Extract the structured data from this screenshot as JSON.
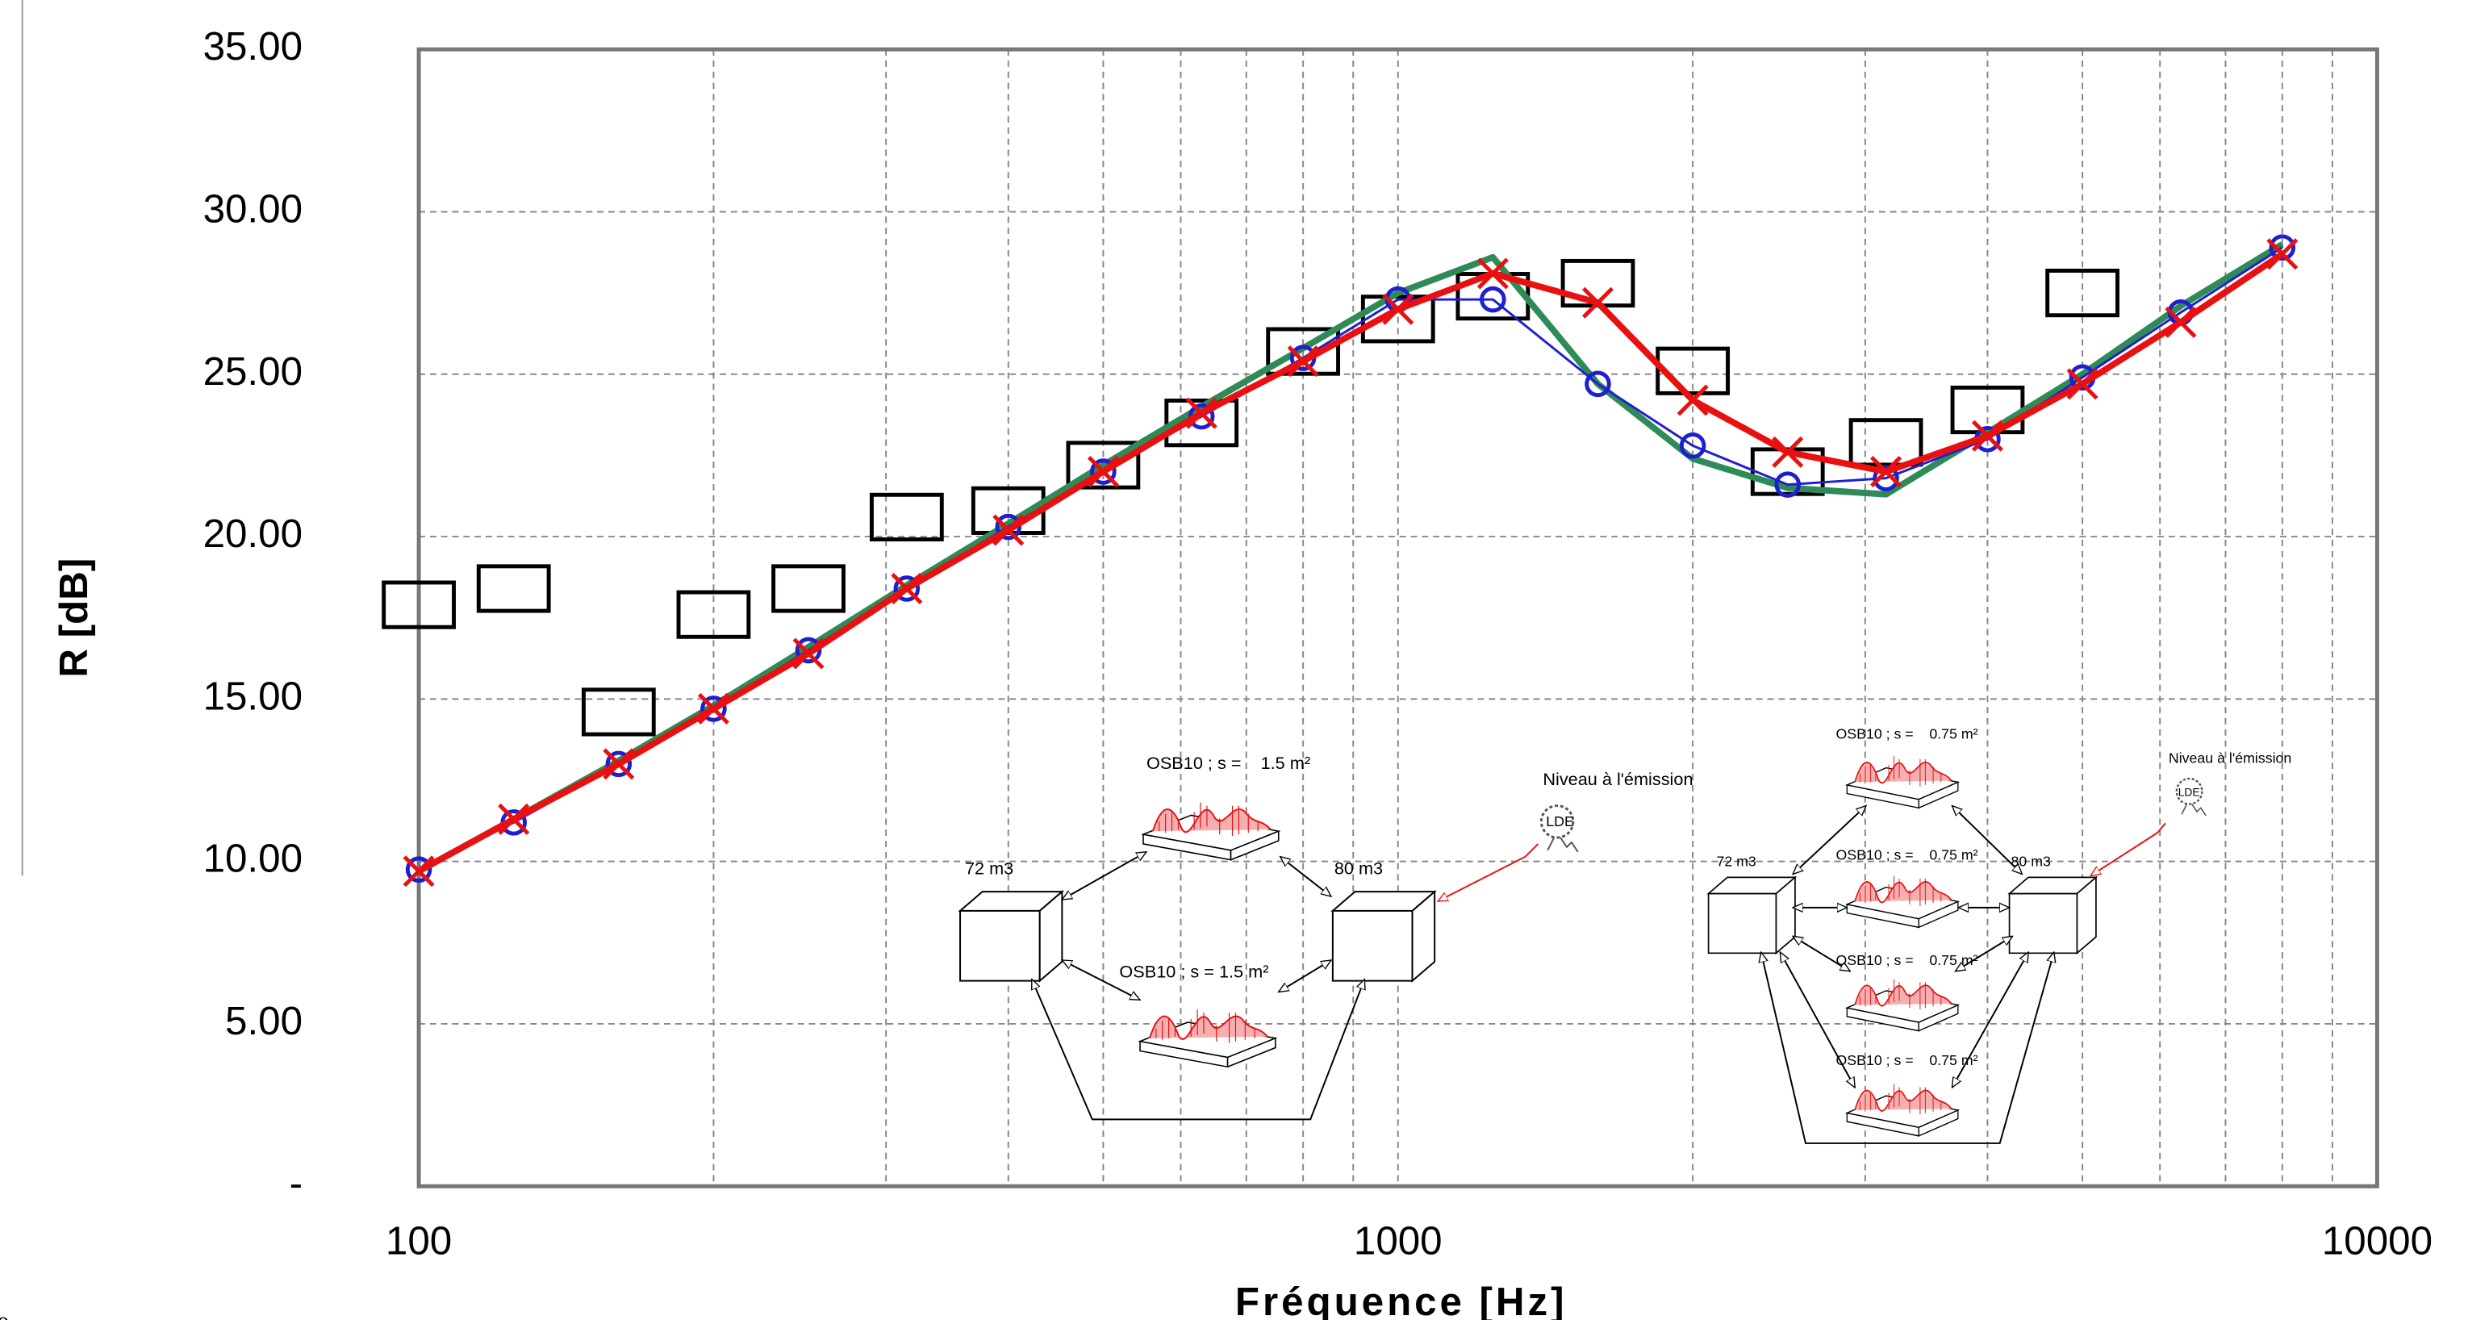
{
  "chart_data": {
    "type": "line",
    "x_label": "Fréquence [Hz]",
    "y_label": "R [dB]",
    "x": [
      100,
      125,
      160,
      200,
      250,
      315,
      400,
      500,
      630,
      800,
      1000,
      1250,
      1600,
      2000,
      2500,
      3150,
      4000,
      5000,
      6300,
      8000
    ],
    "xlim": [
      100,
      10000
    ],
    "xticks": [
      100,
      1000,
      10000
    ],
    "x_log": true,
    "x_minor_grid": true,
    "ylim": [
      0,
      35
    ],
    "yticks": [
      {
        "value": 0,
        "label": "-"
      },
      {
        "value": 5,
        "label": "5.00"
      },
      {
        "value": 10,
        "label": "10.00"
      },
      {
        "value": 15,
        "label": "15.00"
      },
      {
        "value": 20,
        "label": "20.00"
      },
      {
        "value": 25,
        "label": "25.00"
      },
      {
        "value": 30,
        "label": "30.00"
      },
      {
        "value": 35,
        "label": "35.00"
      }
    ],
    "grid": true,
    "series": [
      {
        "color": "#000000",
        "line": false,
        "marker": "square",
        "values": [
          17.9,
          18.4,
          14.6,
          17.6,
          18.4,
          20.6,
          20.8,
          22.2,
          23.5,
          25.7,
          26.7,
          27.4,
          27.8,
          25.1,
          22.0,
          22.9,
          23.9,
          27.5,
          null,
          null
        ]
      },
      {
        "color": "#2e8b57",
        "line": true,
        "line_width": 4,
        "marker": "none",
        "values": [
          9.7,
          11.3,
          13.1,
          14.8,
          16.6,
          18.5,
          20.4,
          22.2,
          24.0,
          25.8,
          27.5,
          28.6,
          24.7,
          22.4,
          21.5,
          21.3,
          23.2,
          25.0,
          27.1,
          29.0
        ]
      },
      {
        "color": "#1f1fd0",
        "line": true,
        "line_width": 1.5,
        "marker": "circle",
        "values": [
          9.75,
          11.2,
          13.0,
          14.7,
          16.5,
          18.4,
          20.3,
          22.0,
          23.7,
          25.5,
          27.3,
          27.3,
          24.7,
          22.8,
          21.6,
          21.8,
          23.0,
          24.9,
          26.9,
          28.9
        ]
      },
      {
        "color": "#e81010",
        "line": true,
        "line_width": 4,
        "marker": "x",
        "values": [
          9.7,
          11.3,
          13.0,
          14.7,
          16.4,
          18.4,
          20.2,
          22.0,
          23.8,
          25.4,
          27.0,
          28.1,
          27.2,
          24.2,
          22.6,
          22.0,
          23.1,
          24.7,
          26.6,
          28.7
        ]
      }
    ],
    "annotations": [
      "OSB10 ; s =    1.5 m²",
      "72 m3",
      "80 m3",
      "Niveau à l'émission",
      "OSB10 ; s = 1.5 m²",
      "OSB10 ; s =    0.75 m²",
      "Niveau à l'émission",
      "72 m3",
      "OSB10 ; s =    0.75 m²",
      "80 m3",
      "OSB10 ; s =    0.75 m²",
      "OSB10 ; s =    0.75 m²",
      "LDE",
      "LDE",
      "0"
    ]
  }
}
